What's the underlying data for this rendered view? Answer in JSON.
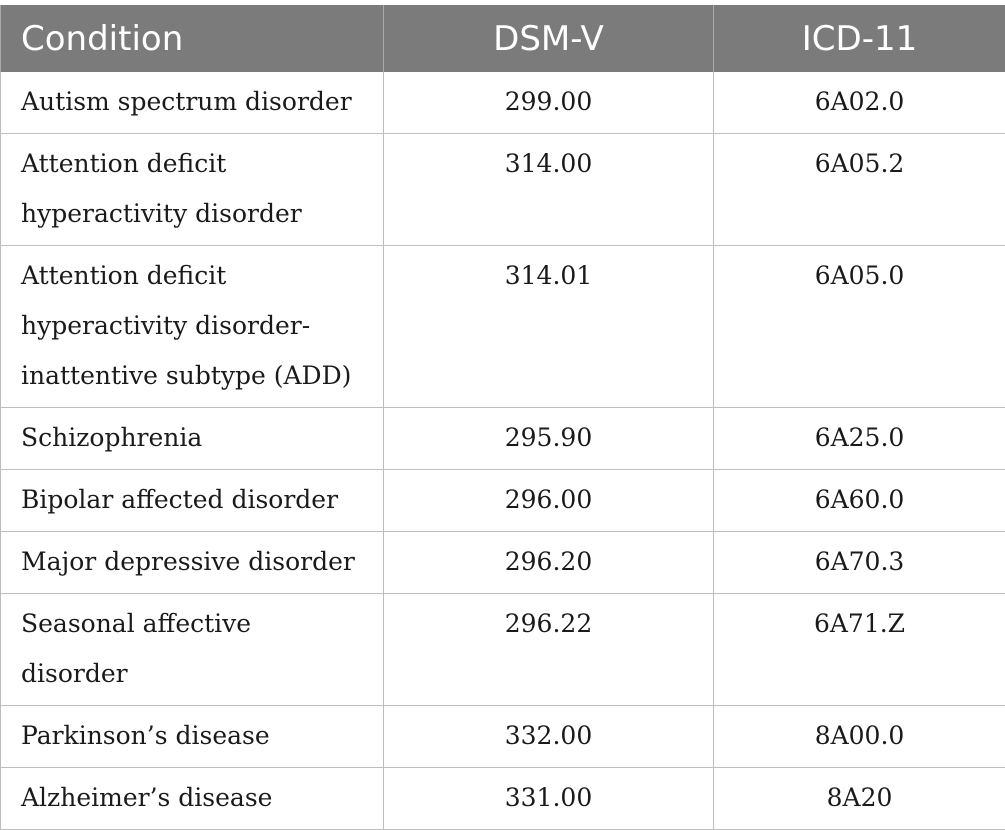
{
  "table": {
    "headers": [
      "Condition",
      "DSM-V",
      "ICD-11"
    ],
    "rows": [
      [
        "Autism spectrum disorder",
        "299.00",
        "6A02.0"
      ],
      [
        "Attention deficit hyperactivity disorder",
        "314.00",
        "6A05.2"
      ],
      [
        "Attention deficit hyperactivity disorder-inattentive subtype (ADD)",
        "314.01",
        "6A05.0"
      ],
      [
        "Schizophrenia",
        "295.90",
        "6A25.0"
      ],
      [
        "Bipolar affected disorder",
        "296.00",
        "6A60.0"
      ],
      [
        "Major depressive disorder",
        "296.20",
        "6A70.3"
      ],
      [
        "Seasonal affective disorder",
        "296.22",
        "6A71.Z"
      ],
      [
        "Parkinson’s disease",
        "332.00",
        "8A00.0"
      ],
      [
        "Alzheimer’s disease",
        "331.00",
        "8A20"
      ]
    ]
  }
}
